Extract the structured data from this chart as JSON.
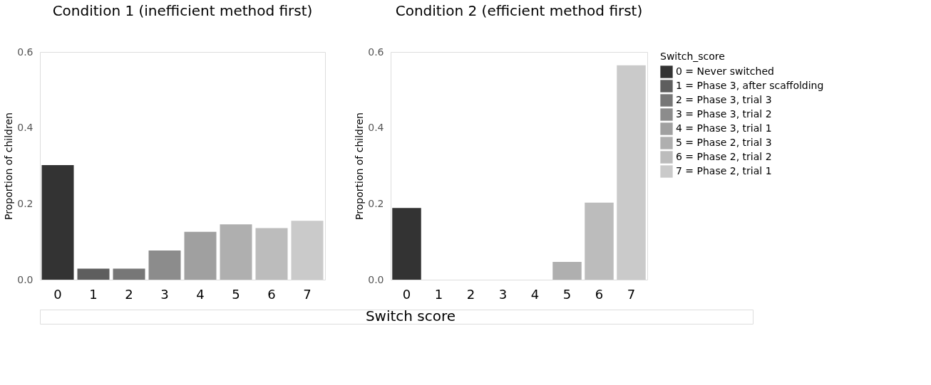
{
  "chart_data": [
    {
      "type": "bar",
      "title": "Condition 1 (inefficient method first)",
      "xlabel": "Switch score",
      "ylabel": "Proportion of children",
      "categories": [
        "0",
        "1",
        "2",
        "3",
        "4",
        "5",
        "6",
        "7"
      ],
      "values": [
        0.302,
        0.029,
        0.029,
        0.077,
        0.126,
        0.146,
        0.136,
        0.155
      ],
      "colors": [
        "#333333",
        "#5e5e5e",
        "#777777",
        "#8c8c8c",
        "#a0a0a0",
        "#afafaf",
        "#bcbcbc",
        "#cacaca"
      ],
      "ylim": [
        0,
        0.6
      ],
      "yticks": [
        {
          "value": 0,
          "label": "0.0"
        },
        0.2,
        0.4,
        0.6
      ],
      "grid": false
    },
    {
      "type": "bar",
      "title": "Condition 2 (efficient method first)",
      "ylabel": "Proportion of children",
      "legend_title": "Switch_score",
      "legend": "right",
      "categories": [
        "0",
        "1",
        "2",
        "3",
        "4",
        "5",
        "6",
        "7"
      ],
      "series": [
        {
          "name": "0 = Never switched",
          "color": "#333333",
          "values": [
            0.189,
            null,
            null,
            null,
            null,
            null,
            null,
            null
          ]
        },
        {
          "name": "1 = Phase 3, after scaffolding",
          "color": "#5e5e5e",
          "values": [
            null,
            0,
            null,
            null,
            null,
            null,
            null,
            null
          ]
        },
        {
          "name": "2 = Phase 3, trial 3",
          "color": "#777777",
          "values": [
            null,
            null,
            0,
            null,
            null,
            null,
            null,
            null
          ]
        },
        {
          "name": "3 = Phase 3, trial 2",
          "color": "#8c8c8c",
          "values": [
            null,
            null,
            null,
            0,
            null,
            null,
            null,
            null
          ]
        },
        {
          "name": "4 = Phase 3, trial 1",
          "color": "#a0a0a0",
          "values": [
            null,
            null,
            null,
            null,
            0,
            null,
            null,
            null
          ]
        },
        {
          "name": "5 = Phase 2, trial 3",
          "color": "#afafaf",
          "values": [
            null,
            null,
            null,
            null,
            null,
            0.047,
            null,
            null
          ]
        },
        {
          "name": "6 = Phase 2, trial 2",
          "color": "#bcbcbc",
          "values": [
            null,
            null,
            null,
            null,
            null,
            null,
            0.203,
            null
          ]
        },
        {
          "name": "7 = Phase 2, trial 1",
          "color": "#cacaca",
          "values": [
            null,
            null,
            null,
            null,
            null,
            null,
            null,
            0.565
          ]
        }
      ],
      "ylim": [
        0,
        0.6
      ],
      "yticks": [
        {
          "value": 0,
          "label": "0.0"
        },
        0.2,
        0.4,
        0.6
      ],
      "grid": false
    }
  ]
}
